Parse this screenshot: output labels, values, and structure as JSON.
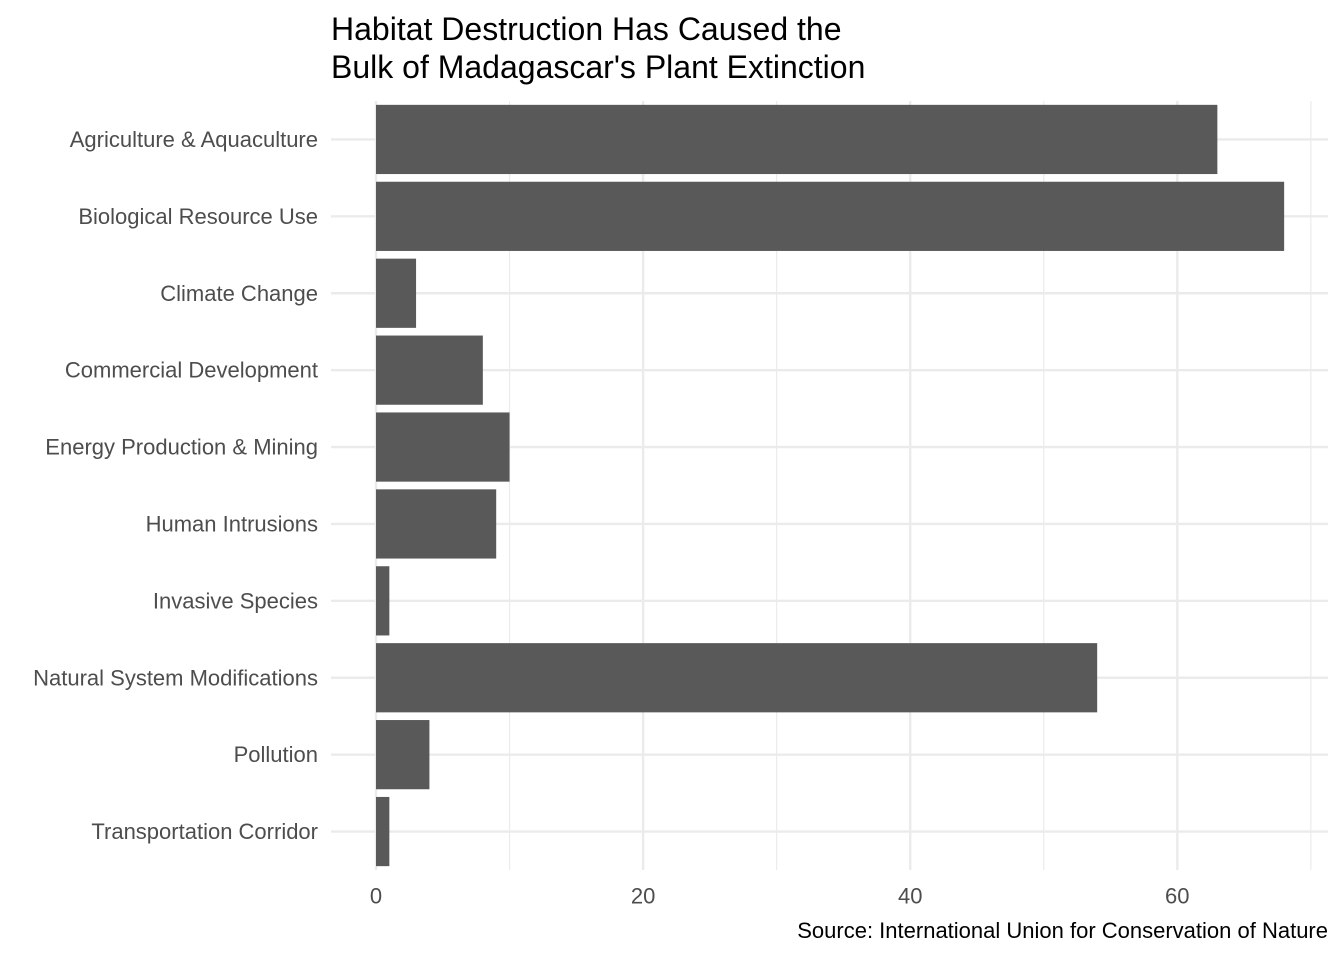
{
  "chart_data": {
    "type": "bar",
    "orientation": "horizontal",
    "title_lines": [
      "Habitat Destruction Has Caused the",
      "Bulk of Madagascar's Plant Extinction"
    ],
    "xlabel": "",
    "ylabel": "",
    "caption": "Source: International Union for Conservation of Nature",
    "categories": [
      "Agriculture & Aquaculture",
      "Biological Resource Use",
      "Climate Change",
      "Commercial Development",
      "Energy Production & Mining",
      "Human Intrusions",
      "Invasive Species",
      "Natural System Modifications",
      "Pollution",
      "Transportation Corridor"
    ],
    "values": [
      63,
      68,
      3,
      8,
      10,
      9,
      1,
      54,
      4,
      1
    ],
    "x_ticks": [
      0,
      20,
      40,
      60
    ],
    "x_tick_labels": [
      "0",
      "20",
      "40",
      "60"
    ],
    "xlim": [
      0,
      70
    ],
    "grid": true,
    "bar_color": "#595959",
    "grid_color": "#ebebeb",
    "legend": "none"
  }
}
